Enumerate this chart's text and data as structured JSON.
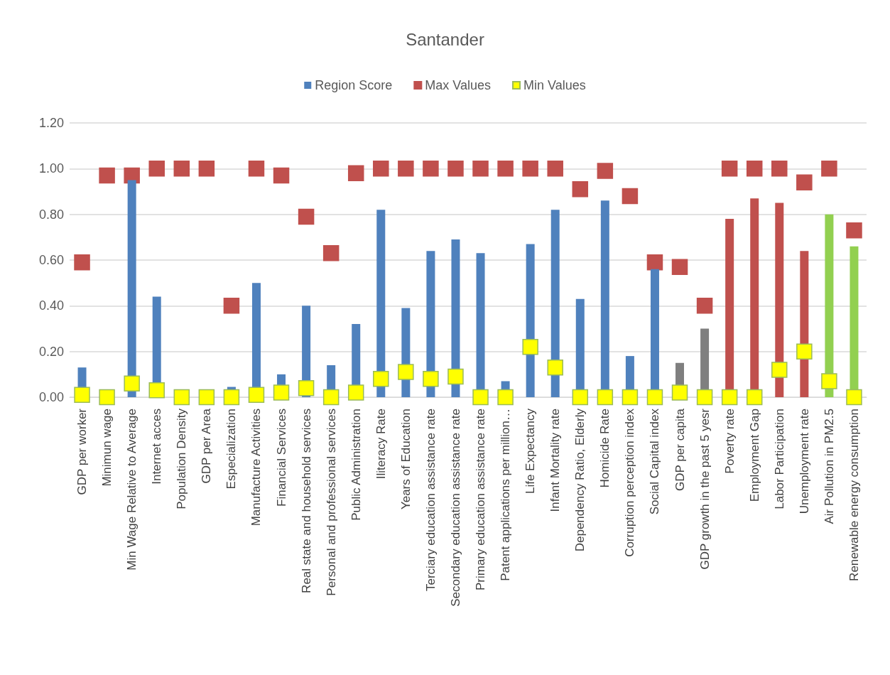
{
  "chart_data": {
    "type": "bar",
    "title": "Santander",
    "categories": [
      "GDP per worker",
      "Minimun wage",
      "Min Wage Relative to Average",
      "Internet acces",
      "Population Density",
      "GDP per Area",
      "Especialization",
      "Manufacture Activities",
      "Financial Services",
      "Real state and household services",
      "Personal and professional services",
      "Public Administration",
      "Iliteracy Rate",
      "Years of Education",
      "Terciary education assistance rate",
      "Secondary education assistance rate",
      "Primary education assistance rate",
      "Patent applications per million…",
      "Life Expectancy",
      "Infant Mortality rate",
      "Dependency Ratio, Elderly",
      "Homicide Rate",
      "Corruption perception index",
      "Social Capital index",
      "GDP per capita",
      "GDP growth in the past 5 yesr",
      "Poverty rate",
      "Employment Gap",
      "Labor Participation",
      "Unemployment rate",
      "Air Pollution in PM2.5",
      "Renewable energy consumption"
    ],
    "series": [
      {
        "name": "Region Score",
        "color": "#4f81bd",
        "colors": [
          "#4f81bd",
          "#4f81bd",
          "#4f81bd",
          "#4f81bd",
          "#4f81bd",
          "#4f81bd",
          "#4f81bd",
          "#4f81bd",
          "#4f81bd",
          "#4f81bd",
          "#4f81bd",
          "#4f81bd",
          "#4f81bd",
          "#4f81bd",
          "#4f81bd",
          "#4f81bd",
          "#4f81bd",
          "#4f81bd",
          "#4f81bd",
          "#4f81bd",
          "#4f81bd",
          "#4f81bd",
          "#4f81bd",
          "#4f81bd",
          "#7f7f7f",
          "#7f7f7f",
          "#c0504d",
          "#c0504d",
          "#c0504d",
          "#c0504d",
          "#92d050",
          "#92d050"
        ],
        "values": [
          0.13,
          0,
          0.95,
          0.44,
          0,
          0,
          0.045,
          0.5,
          0.1,
          0.4,
          0.14,
          0.32,
          0.82,
          0.39,
          0.64,
          0.69,
          0.63,
          0.07,
          0.67,
          0.82,
          0.43,
          0.86,
          0.18,
          0.56,
          0.15,
          0.3,
          0.78,
          0.87,
          0.85,
          0.64,
          0.8,
          0.66
        ]
      },
      {
        "name": "Max Values",
        "type": "scatter",
        "marker": "square",
        "color": "#c0504d",
        "values": [
          0.59,
          0.97,
          0.97,
          1.0,
          1.0,
          1.0,
          0.4,
          1.0,
          0.97,
          0.79,
          0.63,
          0.98,
          1.0,
          1.0,
          1.0,
          1.0,
          1.0,
          1.0,
          1.0,
          1.0,
          0.91,
          0.99,
          0.88,
          0.59,
          0.57,
          0.4,
          1.0,
          1.0,
          1.0,
          0.94,
          1.0,
          0.73
        ]
      },
      {
        "name": "Min Values",
        "type": "scatter",
        "marker": "square",
        "color": "#ffff00",
        "values": [
          0.01,
          0,
          0.06,
          0.03,
          0,
          0,
          0,
          0.01,
          0.02,
          0.04,
          0,
          0.02,
          0.08,
          0.11,
          0.08,
          0.09,
          0,
          0,
          0.22,
          0.13,
          0,
          0,
          0,
          0,
          0.02,
          0,
          0,
          0,
          0.12,
          0.2,
          0.07,
          0
        ]
      }
    ],
    "ylim": [
      0,
      1.2
    ],
    "yticks": [
      {
        "value": 0,
        "label": "0.00"
      },
      {
        "value": 0.2,
        "label": "0.20"
      },
      {
        "value": 0.4,
        "label": "0.40"
      },
      {
        "value": 0.6,
        "label": "0.60"
      },
      {
        "value": 0.8,
        "label": "0.80"
      },
      {
        "value": 1.0,
        "label": "1.00"
      },
      {
        "value": 1.2,
        "label": "1.20"
      }
    ],
    "grid": "y",
    "legend": "top"
  }
}
